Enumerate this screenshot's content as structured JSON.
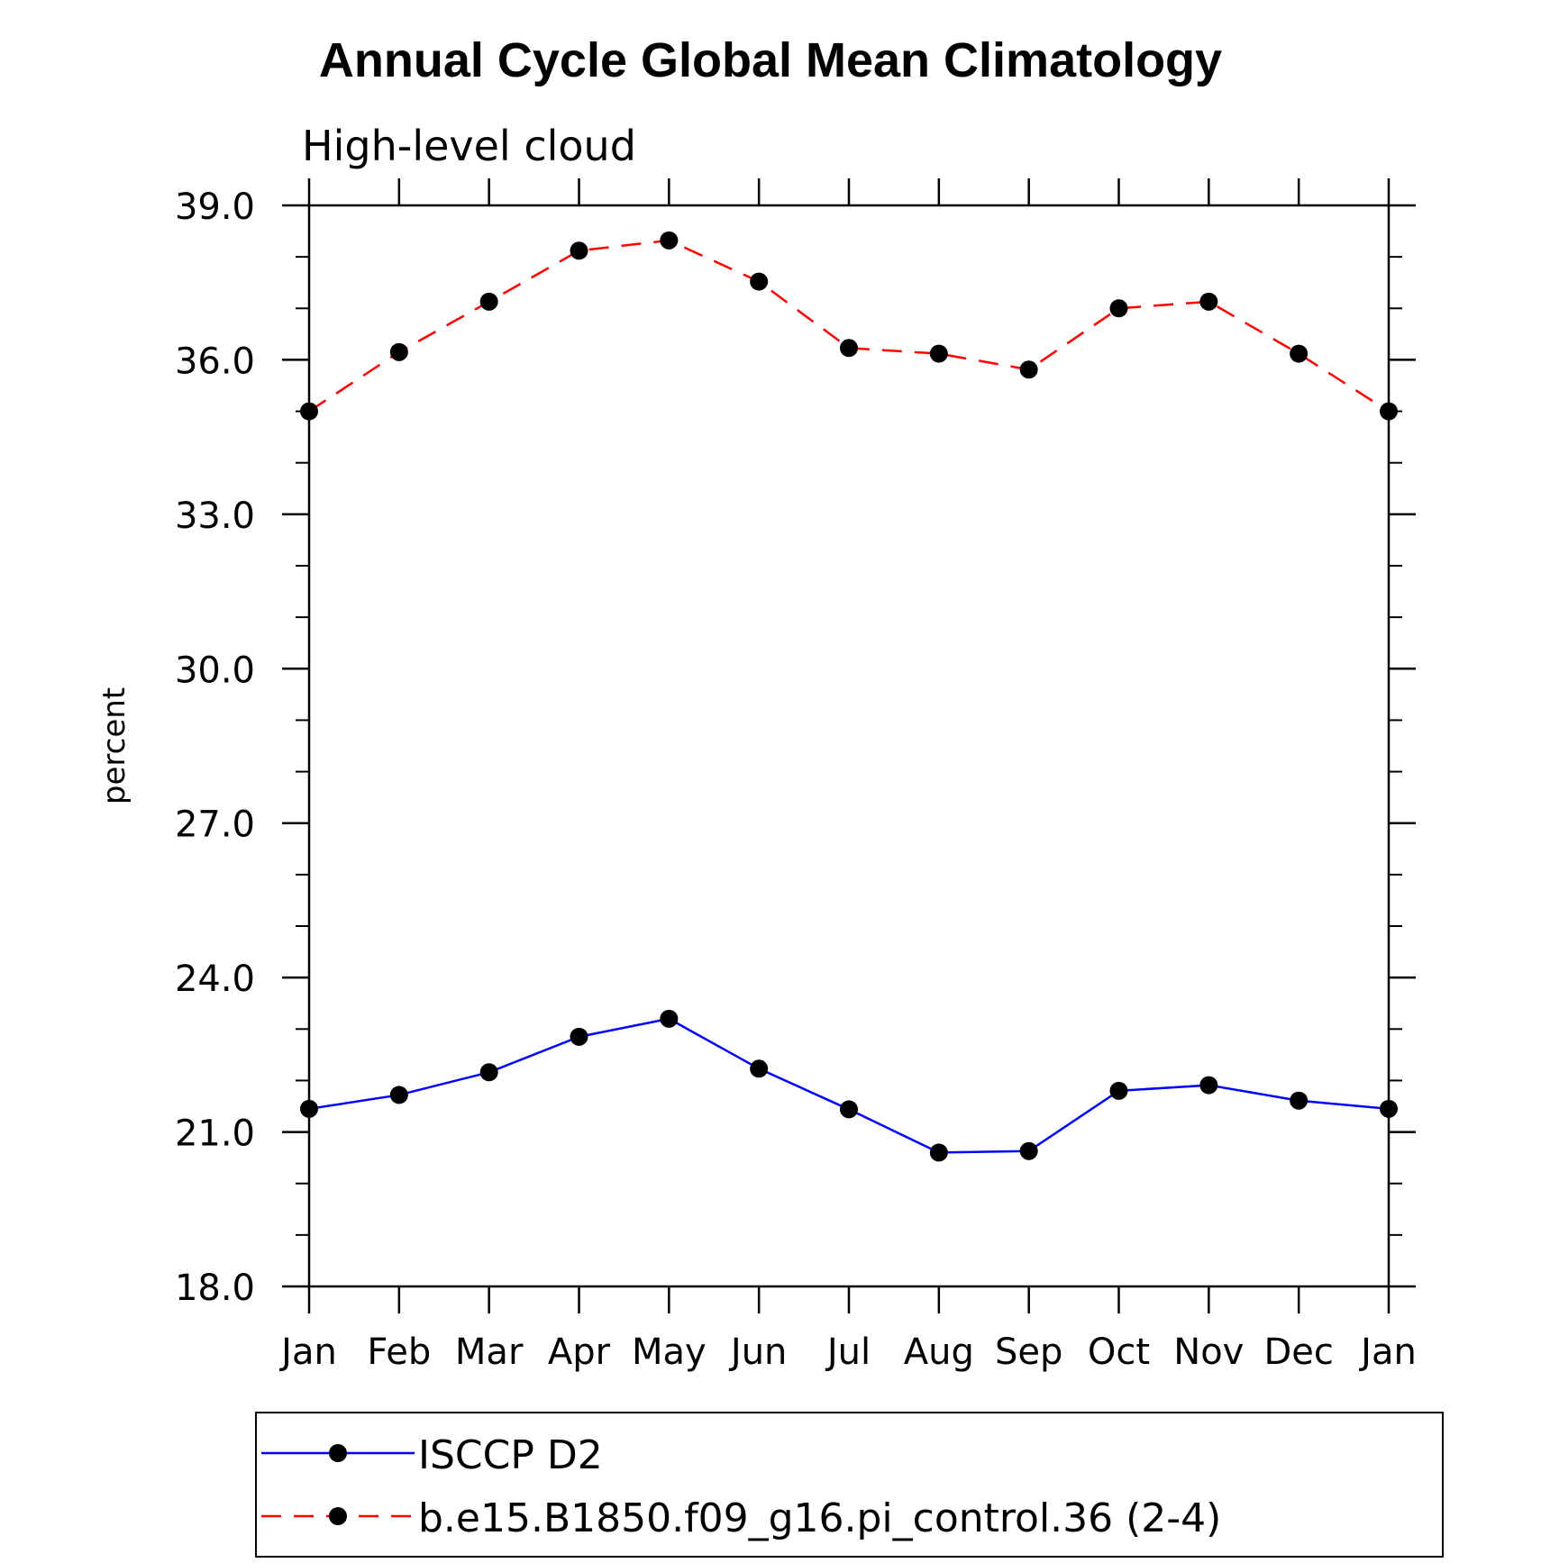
{
  "chart_data": {
    "type": "line",
    "title": "Annual Cycle Global Mean Climatology",
    "subtitle": "High-level cloud",
    "xlabel": "",
    "ylabel": "percent",
    "categories": [
      "Jan",
      "Feb",
      "Mar",
      "Apr",
      "May",
      "Jun",
      "Jul",
      "Aug",
      "Sep",
      "Oct",
      "Nov",
      "Dec",
      "Jan"
    ],
    "ylim": [
      18.0,
      39.0
    ],
    "yticks": [
      "18.0",
      "21.0",
      "24.0",
      "27.0",
      "30.0",
      "33.0",
      "36.0",
      "39.0"
    ],
    "ytick_values": [
      18,
      21,
      24,
      27,
      30,
      33,
      36,
      39
    ],
    "yminor_step": 1.0,
    "grid": false,
    "legend_position": "bottom",
    "series": [
      {
        "name": "ISCCP D2",
        "color": "#0000ff",
        "dash": "solid",
        "marker": "filled-circle",
        "values": [
          21.45,
          21.72,
          22.16,
          22.85,
          23.2,
          22.23,
          21.44,
          20.6,
          20.63,
          21.8,
          21.91,
          21.61,
          21.45
        ]
      },
      {
        "name": "b.e15.B1850.f09_g16.pi_control.36 (2-4)",
        "color": "#ff0000",
        "dash": "dashed",
        "marker": "filled-circle",
        "values": [
          35.0,
          36.15,
          37.13,
          38.12,
          38.32,
          37.52,
          36.23,
          36.12,
          35.81,
          37.0,
          37.13,
          36.12,
          35.0
        ]
      }
    ]
  },
  "colors": {
    "axis": "#000000",
    "marker": "#000000",
    "background": "#ffffff"
  }
}
